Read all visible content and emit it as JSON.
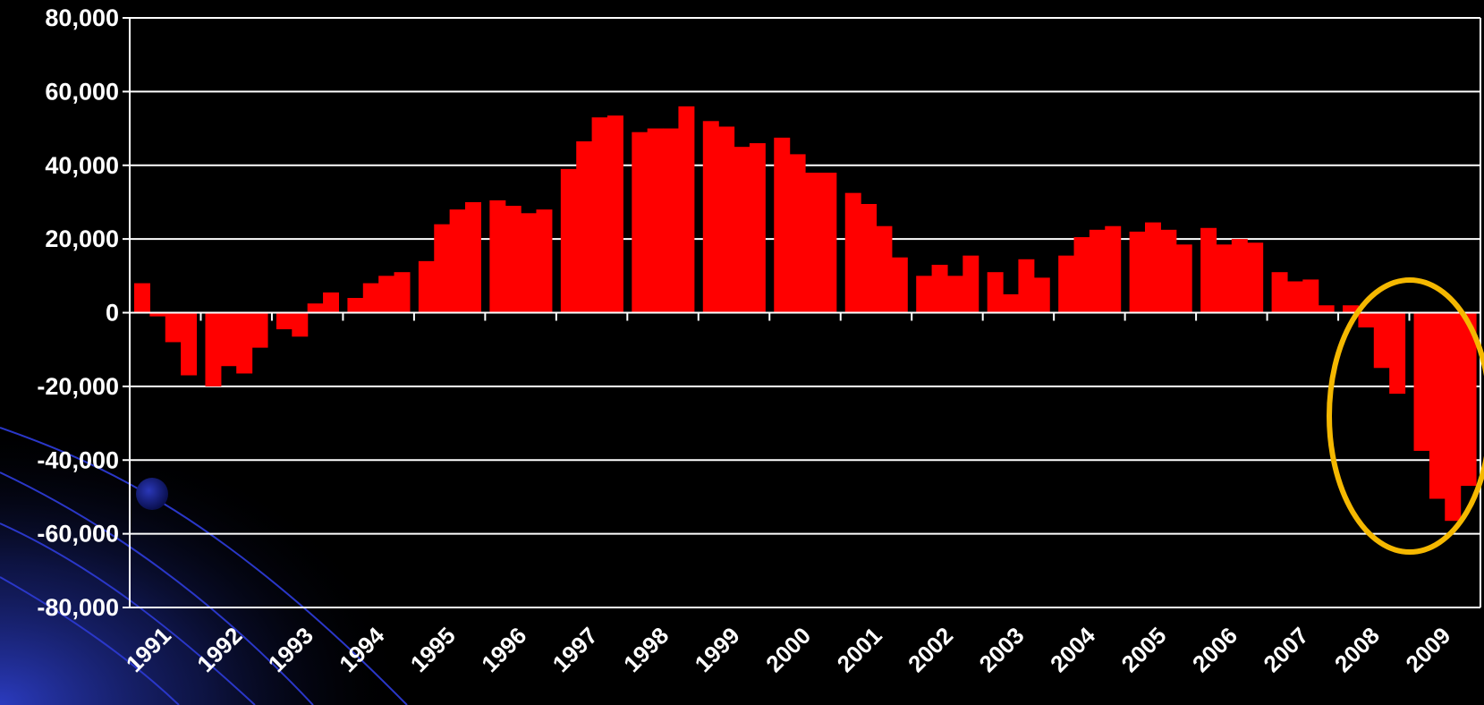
{
  "chart_data": {
    "type": "bar",
    "title": "",
    "xlabel": "",
    "ylabel": "",
    "ylim": [
      -80000,
      80000
    ],
    "yticks": [
      "80,000",
      "60,000",
      "40,000",
      "20,000",
      "0",
      "-20,000",
      "-40,000",
      "-60,000",
      "-80,000"
    ],
    "ytick_values": [
      80000,
      60000,
      40000,
      20000,
      0,
      -20000,
      -40000,
      -60000,
      -80000
    ],
    "year_labels": [
      "1991",
      "1992",
      "1993",
      "1994",
      "1995",
      "1996",
      "1997",
      "1998",
      "1999",
      "2000",
      "2001",
      "2002",
      "2003",
      "2004",
      "2005",
      "2006",
      "2007",
      "2008",
      "2009"
    ],
    "quarters_per_year": 4,
    "grid": true,
    "legend": "none",
    "bar_color": "#ff0000",
    "annotation": {
      "type": "ellipse",
      "color": "#f5b800",
      "around": [
        "2008",
        "2009"
      ]
    },
    "values": [
      8000,
      -1000,
      -8000,
      -17000,
      -20000,
      -14500,
      -16500,
      -9500,
      -4500,
      -6500,
      2500,
      5500,
      4000,
      8000,
      10000,
      11000,
      14000,
      24000,
      28000,
      30000,
      30500,
      29000,
      27000,
      28000,
      39000,
      46500,
      53000,
      53500,
      49000,
      50000,
      50000,
      56000,
      52000,
      50500,
      45000,
      46000,
      47500,
      43000,
      38000,
      38000,
      32500,
      29500,
      23500,
      15000,
      10000,
      13000,
      10000,
      15500,
      11000,
      5000,
      14500,
      9500,
      15500,
      20500,
      22500,
      23500,
      22000,
      24500,
      22500,
      18500,
      23000,
      18500,
      20000,
      19000,
      11000,
      8500,
      9000,
      2000,
      2000,
      -4000,
      -15000,
      -22000,
      -37500,
      -50500,
      -56500,
      -47000
    ]
  }
}
